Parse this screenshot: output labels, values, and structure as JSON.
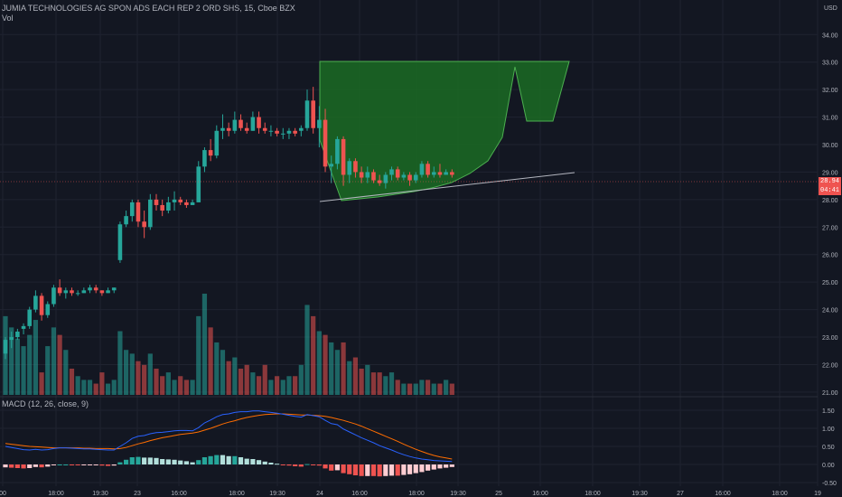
{
  "header": {
    "title": "JUMIA TECHNOLOGIES AG SPON ADS EACH REP 2 ORD SHS, 15, Cboe BZX",
    "volume_label": "Vol",
    "macd_label": "MACD (12, 26, close, 9)",
    "currency": "USD"
  },
  "colors": {
    "background": "#131722",
    "grid": "#1f2330",
    "up": "#26a69a",
    "down": "#ef5350",
    "macd_line": "#2962ff",
    "signal_line": "#ff6d00",
    "pattern_fill": "#1b6b23",
    "pattern_stroke": "#4caf50",
    "trendline": "#b2b5be"
  },
  "price_axis": {
    "ticks": [
      "34.00",
      "33.00",
      "32.00",
      "31.00",
      "30.00",
      "29.00",
      "28.00",
      "27.00",
      "26.00",
      "25.00",
      "24.00",
      "23.00",
      "22.00",
      "21.00"
    ],
    "current_price": "28.94",
    "countdown": "04:41"
  },
  "macd_axis": {
    "ticks": [
      "1.50",
      "1.00",
      "0.50",
      "0.00",
      "-0.50"
    ]
  },
  "time_axis": {
    "labels": [
      "00",
      "18:00",
      "19:30",
      "23",
      "16:00",
      "18:00",
      "19:30",
      "24",
      "16:00",
      "18:00",
      "19:30",
      "25",
      "16:00",
      "18:00",
      "19:30",
      "27",
      "16:00",
      "18:00",
      "19"
    ]
  },
  "chart_data": {
    "type": "candlestick",
    "timeframe": "15",
    "ylim": [
      20.8,
      34.6
    ],
    "candles": [
      [
        22.4,
        23.0,
        22.2,
        22.9
      ],
      [
        22.9,
        23.2,
        22.6,
        23.0
      ],
      [
        23.0,
        23.3,
        22.9,
        23.2
      ],
      [
        23.3,
        23.5,
        23.1,
        23.4
      ],
      [
        23.4,
        24.1,
        23.3,
        24.0
      ],
      [
        24.0,
        24.7,
        23.9,
        24.5
      ],
      [
        24.5,
        24.6,
        23.6,
        23.8
      ],
      [
        23.8,
        24.3,
        23.7,
        24.2
      ],
      [
        24.2,
        24.9,
        24.1,
        24.8
      ],
      [
        24.8,
        25.1,
        24.5,
        24.6
      ],
      [
        24.6,
        24.8,
        24.4,
        24.7
      ],
      [
        24.7,
        24.8,
        24.5,
        24.6
      ],
      [
        24.6,
        24.7,
        24.5,
        24.6
      ],
      [
        24.6,
        24.8,
        24.6,
        24.7
      ],
      [
        24.7,
        24.9,
        24.6,
        24.8
      ],
      [
        24.8,
        24.9,
        24.6,
        24.7
      ],
      [
        24.7,
        24.7,
        24.5,
        24.6
      ],
      [
        24.6,
        24.8,
        24.6,
        24.7
      ],
      [
        24.7,
        24.8,
        24.6,
        24.8
      ],
      [
        25.8,
        27.2,
        25.7,
        27.1
      ],
      [
        27.1,
        27.6,
        27.0,
        27.4
      ],
      [
        27.4,
        28.0,
        27.2,
        27.9
      ],
      [
        27.9,
        28.0,
        27.0,
        27.2
      ],
      [
        27.2,
        27.6,
        26.6,
        27.0
      ],
      [
        27.0,
        28.2,
        26.9,
        28.0
      ],
      [
        28.0,
        28.2,
        27.6,
        27.8
      ],
      [
        27.8,
        28.0,
        27.4,
        27.6
      ],
      [
        27.6,
        28.1,
        27.5,
        27.9
      ],
      [
        27.9,
        28.3,
        27.6,
        28.0
      ],
      [
        28.0,
        28.1,
        27.8,
        27.9
      ],
      [
        27.9,
        28.0,
        27.7,
        27.8
      ],
      [
        27.8,
        28.0,
        27.8,
        27.9
      ],
      [
        27.9,
        29.4,
        27.9,
        29.2
      ],
      [
        29.2,
        29.9,
        29.0,
        29.8
      ],
      [
        29.8,
        30.2,
        29.4,
        29.6
      ],
      [
        29.6,
        30.7,
        29.5,
        30.5
      ],
      [
        30.5,
        31.1,
        30.2,
        30.6
      ],
      [
        30.6,
        30.8,
        30.3,
        30.5
      ],
      [
        30.5,
        31.2,
        30.4,
        30.9
      ],
      [
        30.9,
        31.1,
        30.5,
        30.6
      ],
      [
        30.6,
        30.8,
        30.4,
        30.5
      ],
      [
        30.5,
        31.2,
        30.5,
        31.0
      ],
      [
        31.0,
        31.2,
        30.4,
        30.6
      ],
      [
        30.6,
        30.8,
        30.4,
        30.5
      ],
      [
        30.5,
        30.7,
        30.3,
        30.5
      ],
      [
        30.5,
        30.6,
        30.3,
        30.4
      ],
      [
        30.4,
        30.6,
        30.2,
        30.4
      ],
      [
        30.4,
        30.6,
        30.2,
        30.5
      ],
      [
        30.5,
        30.6,
        30.3,
        30.4
      ],
      [
        30.5,
        30.7,
        30.3,
        30.6
      ],
      [
        30.6,
        32.0,
        30.5,
        31.6
      ],
      [
        31.6,
        32.1,
        30.4,
        30.6
      ],
      [
        30.6,
        31.4,
        29.9,
        30.9
      ],
      [
        30.9,
        31.3,
        29.0,
        29.2
      ],
      [
        29.2,
        29.6,
        28.6,
        29.3
      ],
      [
        29.3,
        30.3,
        29.1,
        30.2
      ],
      [
        30.2,
        30.3,
        28.5,
        28.9
      ],
      [
        28.9,
        29.5,
        28.6,
        29.4
      ],
      [
        29.4,
        29.5,
        28.8,
        29.0
      ],
      [
        29.0,
        29.2,
        28.6,
        28.8
      ],
      [
        28.8,
        29.2,
        28.6,
        29.0
      ],
      [
        29.0,
        29.1,
        28.6,
        28.7
      ],
      [
        28.7,
        28.9,
        28.5,
        28.6
      ],
      [
        28.6,
        29.0,
        28.4,
        28.9
      ],
      [
        28.9,
        29.2,
        28.7,
        29.1
      ],
      [
        29.1,
        29.2,
        28.7,
        28.8
      ],
      [
        28.8,
        29.0,
        28.7,
        28.9
      ],
      [
        28.9,
        29.0,
        28.5,
        28.7
      ],
      [
        28.7,
        29.0,
        28.6,
        28.9
      ],
      [
        28.9,
        29.4,
        28.8,
        29.3
      ],
      [
        29.3,
        29.4,
        28.8,
        28.9
      ],
      [
        28.9,
        29.2,
        28.8,
        29.0
      ],
      [
        29.0,
        29.3,
        28.8,
        28.9
      ],
      [
        28.9,
        29.1,
        28.9,
        29.0
      ],
      [
        29.0,
        29.1,
        28.8,
        28.9
      ]
    ],
    "volume": [
      2.1,
      1.8,
      1.5,
      1.3,
      1.6,
      2.0,
      0.6,
      1.3,
      1.8,
      1.6,
      1.2,
      0.7,
      0.5,
      0.4,
      0.4,
      0.3,
      0.6,
      0.3,
      0.4,
      1.7,
      1.2,
      1.1,
      0.9,
      0.8,
      1.1,
      0.7,
      0.5,
      0.6,
      0.4,
      0.5,
      0.4,
      0.4,
      2.1,
      2.7,
      1.8,
      1.4,
      1.2,
      0.9,
      1.0,
      0.7,
      0.8,
      0.6,
      0.5,
      0.8,
      0.4,
      0.5,
      0.4,
      0.5,
      0.5,
      0.8,
      2.4,
      2.1,
      1.7,
      1.6,
      1.4,
      1.2,
      1.4,
      0.9,
      1.0,
      0.7,
      0.8,
      0.6,
      0.6,
      0.5,
      0.6,
      0.4,
      0.3,
      0.3,
      0.3,
      0.4,
      0.4,
      0.3,
      0.3,
      0.4,
      0.3
    ],
    "macd": {
      "ylim": [
        -0.6,
        1.65
      ],
      "macd_line": [
        0.5,
        0.47,
        0.44,
        0.41,
        0.4,
        0.42,
        0.4,
        0.41,
        0.44,
        0.46,
        0.46,
        0.45,
        0.44,
        0.43,
        0.43,
        0.42,
        0.41,
        0.4,
        0.4,
        0.5,
        0.6,
        0.72,
        0.78,
        0.8,
        0.85,
        0.88,
        0.89,
        0.91,
        0.93,
        0.94,
        0.94,
        0.93,
        1.02,
        1.15,
        1.23,
        1.32,
        1.38,
        1.4,
        1.44,
        1.46,
        1.46,
        1.48,
        1.48,
        1.46,
        1.44,
        1.42,
        1.39,
        1.36,
        1.33,
        1.31,
        1.38,
        1.35,
        1.32,
        1.22,
        1.13,
        1.1,
        0.98,
        0.9,
        0.82,
        0.74,
        0.67,
        0.6,
        0.52,
        0.46,
        0.4,
        0.33,
        0.27,
        0.22,
        0.18,
        0.15,
        0.13,
        0.11,
        0.1,
        0.09,
        0.08
      ],
      "signal_line": [
        0.58,
        0.56,
        0.54,
        0.52,
        0.5,
        0.49,
        0.48,
        0.47,
        0.46,
        0.46,
        0.46,
        0.46,
        0.46,
        0.45,
        0.45,
        0.44,
        0.44,
        0.44,
        0.43,
        0.44,
        0.47,
        0.52,
        0.57,
        0.61,
        0.66,
        0.7,
        0.74,
        0.77,
        0.8,
        0.83,
        0.85,
        0.87,
        0.9,
        0.95,
        1.0,
        1.06,
        1.12,
        1.17,
        1.21,
        1.26,
        1.3,
        1.33,
        1.36,
        1.38,
        1.39,
        1.4,
        1.4,
        1.39,
        1.38,
        1.37,
        1.37,
        1.36,
        1.35,
        1.33,
        1.3,
        1.26,
        1.22,
        1.17,
        1.12,
        1.06,
        0.99,
        0.92,
        0.85,
        0.78,
        0.71,
        0.64,
        0.56,
        0.49,
        0.42,
        0.36,
        0.3,
        0.25,
        0.21,
        0.18,
        0.15
      ]
    }
  }
}
